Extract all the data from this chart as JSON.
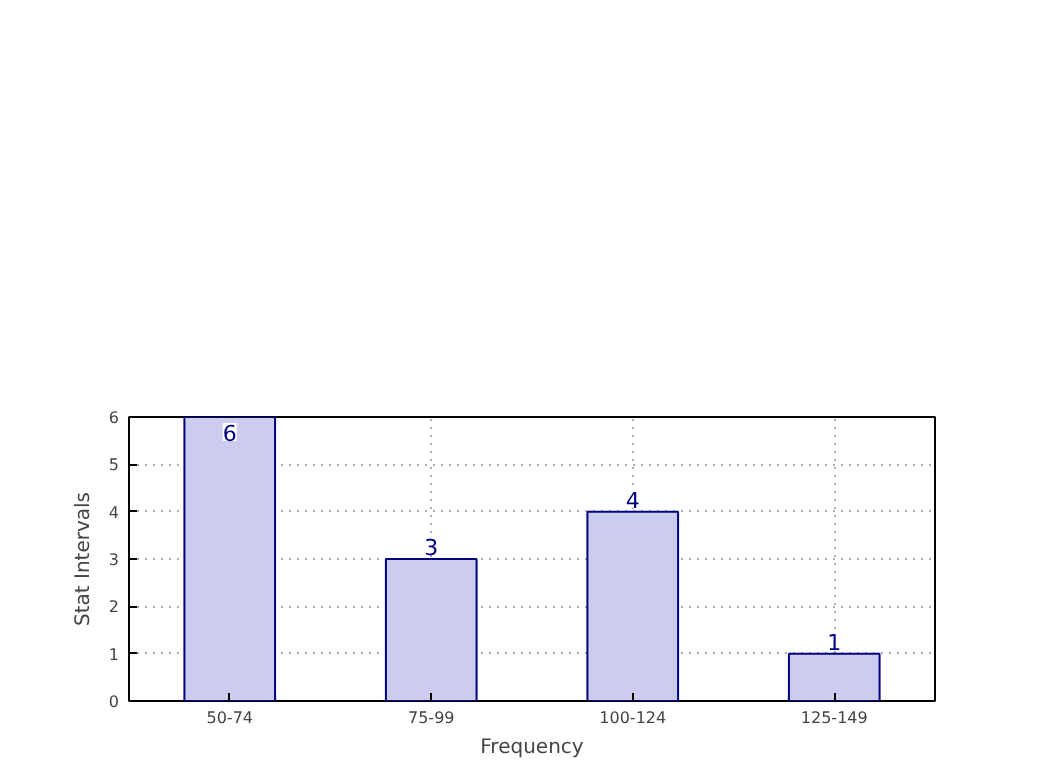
{
  "chart_data": {
    "type": "bar",
    "xlabel": "Frequency",
    "ylabel": "Stat Intervals",
    "categories": [
      "50-74",
      "75-99",
      "100-124",
      "125-149"
    ],
    "values": [
      6,
      3,
      4,
      1
    ],
    "color": "#ccccee",
    "ylim": [
      0,
      6
    ],
    "yticks": [
      0,
      1,
      2,
      3,
      4,
      5,
      6
    ],
    "grid": true,
    "data_labels": true
  }
}
